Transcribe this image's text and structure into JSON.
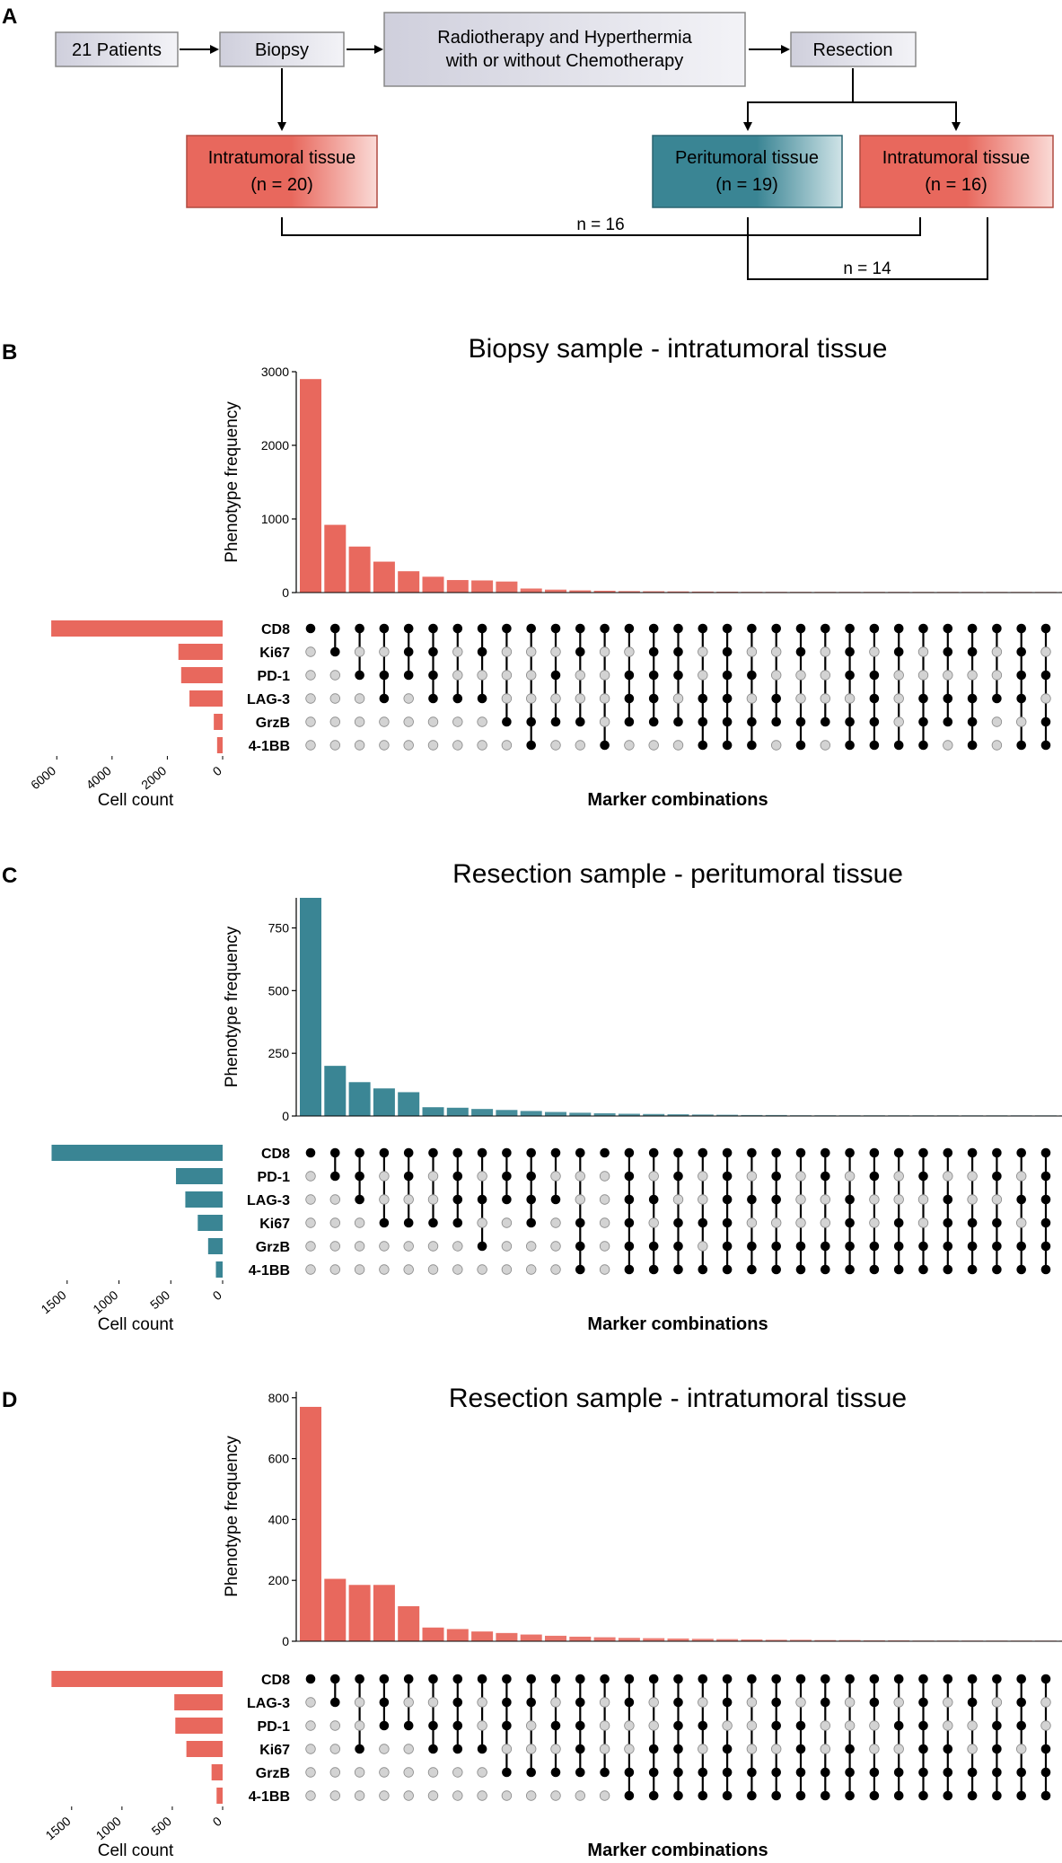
{
  "panel_labels": {
    "a": "A",
    "b": "B",
    "c": "C",
    "d": "D"
  },
  "flow": {
    "patients": "21 Patients",
    "biopsy": "Biopsy",
    "treatment_line1": "Radiotherapy and Hyperthermia",
    "treatment_line2": "with or without Chemotherapy",
    "resection": "Resection",
    "biopsy_intra_label": "Intratumoral tissue",
    "biopsy_intra_n": "(n = 20)",
    "peri_label": "Peritumoral tissue",
    "peri_n": "(n = 19)",
    "resection_intra_label": "Intratumoral tissue",
    "resection_intra_n": "(n = 16)",
    "pair_1": "n = 16",
    "pair_2": "n = 14"
  },
  "colors": {
    "salmon": "#e8685d",
    "teal": "#3a8594",
    "flow_box": "#d4d4e0",
    "dot_on": "#000000",
    "dot_off": "#d3d3d3"
  },
  "chart_data": [
    {
      "type": "bar",
      "title": "Biopsy sample - intratumoral tissue",
      "ylabel": "Phenotype frequency",
      "xlabel": "Marker combinations",
      "set_size_label": "Cell count",
      "color": "salmon",
      "ylim": [
        0,
        3000
      ],
      "yticks": [
        0,
        1000,
        2000,
        3000
      ],
      "xticks_set": [
        6000,
        4000,
        2000,
        0
      ],
      "set_max": 6300,
      "sets": [
        "CD8",
        "Ki67",
        "PD-1",
        "LAG-3",
        "GrzB",
        "4-1BB"
      ],
      "set_sizes": [
        6200,
        1600,
        1500,
        1200,
        320,
        200
      ],
      "values": [
        2900,
        920,
        625,
        420,
        290,
        215,
        170,
        165,
        150,
        55,
        40,
        30,
        25,
        20,
        18,
        16,
        14,
        12,
        10,
        9,
        8,
        7,
        6,
        5,
        5,
        4,
        3,
        3,
        2,
        2,
        1,
        1
      ],
      "combinations": [
        [
          1,
          0,
          0,
          0,
          0,
          0
        ],
        [
          1,
          1,
          0,
          0,
          0,
          0
        ],
        [
          1,
          0,
          1,
          0,
          0,
          0
        ],
        [
          1,
          0,
          1,
          1,
          0,
          0
        ],
        [
          1,
          1,
          1,
          0,
          0,
          0
        ],
        [
          1,
          1,
          1,
          1,
          0,
          0
        ],
        [
          1,
          0,
          0,
          1,
          0,
          0
        ],
        [
          1,
          1,
          0,
          1,
          0,
          0
        ],
        [
          1,
          0,
          0,
          0,
          1,
          0
        ],
        [
          1,
          0,
          0,
          0,
          1,
          1
        ],
        [
          1,
          0,
          1,
          0,
          1,
          0
        ],
        [
          1,
          1,
          0,
          0,
          1,
          0
        ],
        [
          1,
          0,
          0,
          0,
          0,
          1
        ],
        [
          1,
          0,
          1,
          1,
          1,
          0
        ],
        [
          1,
          1,
          1,
          1,
          1,
          0
        ],
        [
          1,
          1,
          1,
          0,
          1,
          0
        ],
        [
          1,
          0,
          0,
          1,
          1,
          1
        ],
        [
          1,
          1,
          1,
          1,
          1,
          1
        ],
        [
          1,
          0,
          1,
          0,
          1,
          1
        ],
        [
          1,
          0,
          0,
          1,
          1,
          0
        ],
        [
          1,
          1,
          0,
          0,
          1,
          1
        ],
        [
          1,
          0,
          0,
          0,
          1,
          0
        ],
        [
          1,
          1,
          1,
          0,
          1,
          1
        ],
        [
          1,
          0,
          1,
          1,
          1,
          1
        ],
        [
          1,
          1,
          0,
          0,
          0,
          1
        ],
        [
          1,
          0,
          0,
          1,
          1,
          1
        ],
        [
          1,
          1,
          0,
          1,
          1,
          0
        ],
        [
          1,
          1,
          0,
          1,
          1,
          1
        ],
        [
          1,
          0,
          0,
          1,
          0,
          0
        ],
        [
          1,
          1,
          1,
          1,
          0,
          1
        ],
        [
          1,
          0,
          1,
          0,
          1,
          1
        ],
        [
          1,
          1,
          0,
          1,
          1,
          1
        ]
      ]
    },
    {
      "type": "bar",
      "title": "Resection sample - peritumoral tissue",
      "ylabel": "Phenotype frequency",
      "xlabel": "Marker combinations",
      "set_size_label": "Cell count",
      "color": "teal",
      "ylim": [
        0,
        870
      ],
      "yticks": [
        0,
        250,
        500,
        750
      ],
      "xticks_set": [
        1500,
        1000,
        500,
        0
      ],
      "set_max": 1680,
      "sets": [
        "CD8",
        "PD-1",
        "LAG-3",
        "Ki67",
        "GrzB",
        "4-1BB"
      ],
      "set_sizes": [
        1650,
        450,
        360,
        240,
        140,
        65
      ],
      "values": [
        870,
        200,
        135,
        110,
        95,
        35,
        33,
        28,
        24,
        20,
        16,
        13,
        11,
        9,
        8,
        7,
        6,
        5,
        4,
        4,
        3,
        3,
        2,
        2,
        2,
        1,
        1,
        1,
        1,
        1,
        1,
        1
      ],
      "combinations": [
        [
          1,
          0,
          0,
          0,
          0,
          0
        ],
        [
          1,
          1,
          0,
          0,
          0,
          0
        ],
        [
          1,
          1,
          1,
          0,
          0,
          0
        ],
        [
          1,
          0,
          0,
          1,
          0,
          0
        ],
        [
          1,
          1,
          0,
          1,
          0,
          0
        ],
        [
          1,
          0,
          0,
          1,
          0,
          0
        ],
        [
          1,
          1,
          1,
          1,
          0,
          0
        ],
        [
          1,
          0,
          1,
          0,
          1,
          0
        ],
        [
          1,
          1,
          1,
          0,
          0,
          0
        ],
        [
          1,
          1,
          1,
          1,
          0,
          0
        ],
        [
          1,
          0,
          1,
          0,
          0,
          0
        ],
        [
          1,
          0,
          0,
          1,
          1,
          1
        ],
        [
          1,
          0,
          0,
          0,
          0,
          0
        ],
        [
          1,
          1,
          1,
          1,
          1,
          1
        ],
        [
          1,
          0,
          1,
          0,
          1,
          1
        ],
        [
          1,
          1,
          0,
          1,
          1,
          1
        ],
        [
          1,
          0,
          0,
          1,
          0,
          1
        ],
        [
          1,
          1,
          1,
          1,
          1,
          1
        ],
        [
          1,
          0,
          1,
          0,
          1,
          1
        ],
        [
          1,
          1,
          1,
          0,
          1,
          1
        ],
        [
          1,
          0,
          0,
          0,
          1,
          1
        ],
        [
          1,
          1,
          0,
          0,
          1,
          1
        ],
        [
          1,
          0,
          1,
          1,
          1,
          1
        ],
        [
          1,
          1,
          0,
          0,
          1,
          1
        ],
        [
          1,
          0,
          0,
          1,
          1,
          1
        ],
        [
          1,
          1,
          0,
          0,
          1,
          1
        ],
        [
          1,
          0,
          1,
          1,
          1,
          1
        ],
        [
          1,
          0,
          0,
          1,
          1,
          1
        ],
        [
          1,
          1,
          0,
          1,
          1,
          1
        ],
        [
          1,
          0,
          1,
          0,
          1,
          1
        ],
        [
          1,
          1,
          1,
          1,
          1,
          1
        ],
        [
          1,
          0,
          1,
          1,
          1,
          1
        ]
      ]
    },
    {
      "type": "bar",
      "title": "Resection sample - intratumoral tissue",
      "ylabel": "Phenotype frequency",
      "xlabel": "Marker combinations",
      "set_size_label": "Cell count",
      "color": "salmon",
      "ylim": [
        0,
        820
      ],
      "yticks": [
        0,
        200,
        400,
        600,
        800
      ],
      "xticks_set": [
        1500,
        1000,
        500,
        0
      ],
      "set_max": 1730,
      "sets": [
        "CD8",
        "LAG-3",
        "PD-1",
        "Ki67",
        "GrzB",
        "4-1BB"
      ],
      "set_sizes": [
        1700,
        480,
        470,
        360,
        110,
        60
      ],
      "values": [
        770,
        205,
        185,
        185,
        115,
        45,
        40,
        32,
        27,
        22,
        18,
        15,
        13,
        11,
        10,
        9,
        8,
        7,
        6,
        5,
        5,
        4,
        4,
        3,
        3,
        2,
        2,
        2,
        1,
        1,
        1,
        1
      ],
      "combinations": [
        [
          1,
          0,
          0,
          0,
          0,
          0
        ],
        [
          1,
          1,
          0,
          0,
          0,
          0
        ],
        [
          1,
          0,
          0,
          1,
          0,
          0
        ],
        [
          1,
          1,
          1,
          0,
          0,
          0
        ],
        [
          1,
          0,
          1,
          0,
          0,
          0
        ],
        [
          1,
          0,
          1,
          1,
          0,
          0
        ],
        [
          1,
          1,
          1,
          1,
          0,
          0
        ],
        [
          1,
          0,
          0,
          1,
          0,
          0
        ],
        [
          1,
          1,
          1,
          0,
          1,
          0
        ],
        [
          1,
          1,
          0,
          0,
          1,
          0
        ],
        [
          1,
          0,
          1,
          0,
          1,
          0
        ],
        [
          1,
          1,
          1,
          1,
          1,
          0
        ],
        [
          1,
          0,
          0,
          0,
          1,
          0
        ],
        [
          1,
          1,
          0,
          0,
          1,
          1
        ],
        [
          1,
          0,
          0,
          1,
          1,
          1
        ],
        [
          1,
          1,
          1,
          1,
          1,
          1
        ],
        [
          1,
          0,
          1,
          0,
          1,
          1
        ],
        [
          1,
          1,
          0,
          1,
          1,
          1
        ],
        [
          1,
          0,
          0,
          0,
          1,
          1
        ],
        [
          1,
          1,
          1,
          0,
          1,
          1
        ],
        [
          1,
          0,
          1,
          1,
          1,
          1
        ],
        [
          1,
          1,
          0,
          0,
          1,
          1
        ],
        [
          1,
          0,
          0,
          1,
          1,
          1
        ],
        [
          1,
          1,
          0,
          0,
          1,
          1
        ],
        [
          1,
          0,
          1,
          0,
          1,
          1
        ],
        [
          1,
          1,
          1,
          1,
          1,
          1
        ],
        [
          1,
          0,
          0,
          1,
          1,
          1
        ],
        [
          1,
          1,
          0,
          0,
          1,
          1
        ],
        [
          1,
          0,
          1,
          1,
          1,
          1
        ],
        [
          1,
          1,
          1,
          0,
          1,
          1
        ],
        [
          1,
          0,
          0,
          1,
          1,
          1
        ],
        [
          1,
          1,
          0,
          0,
          1,
          1
        ]
      ]
    }
  ]
}
